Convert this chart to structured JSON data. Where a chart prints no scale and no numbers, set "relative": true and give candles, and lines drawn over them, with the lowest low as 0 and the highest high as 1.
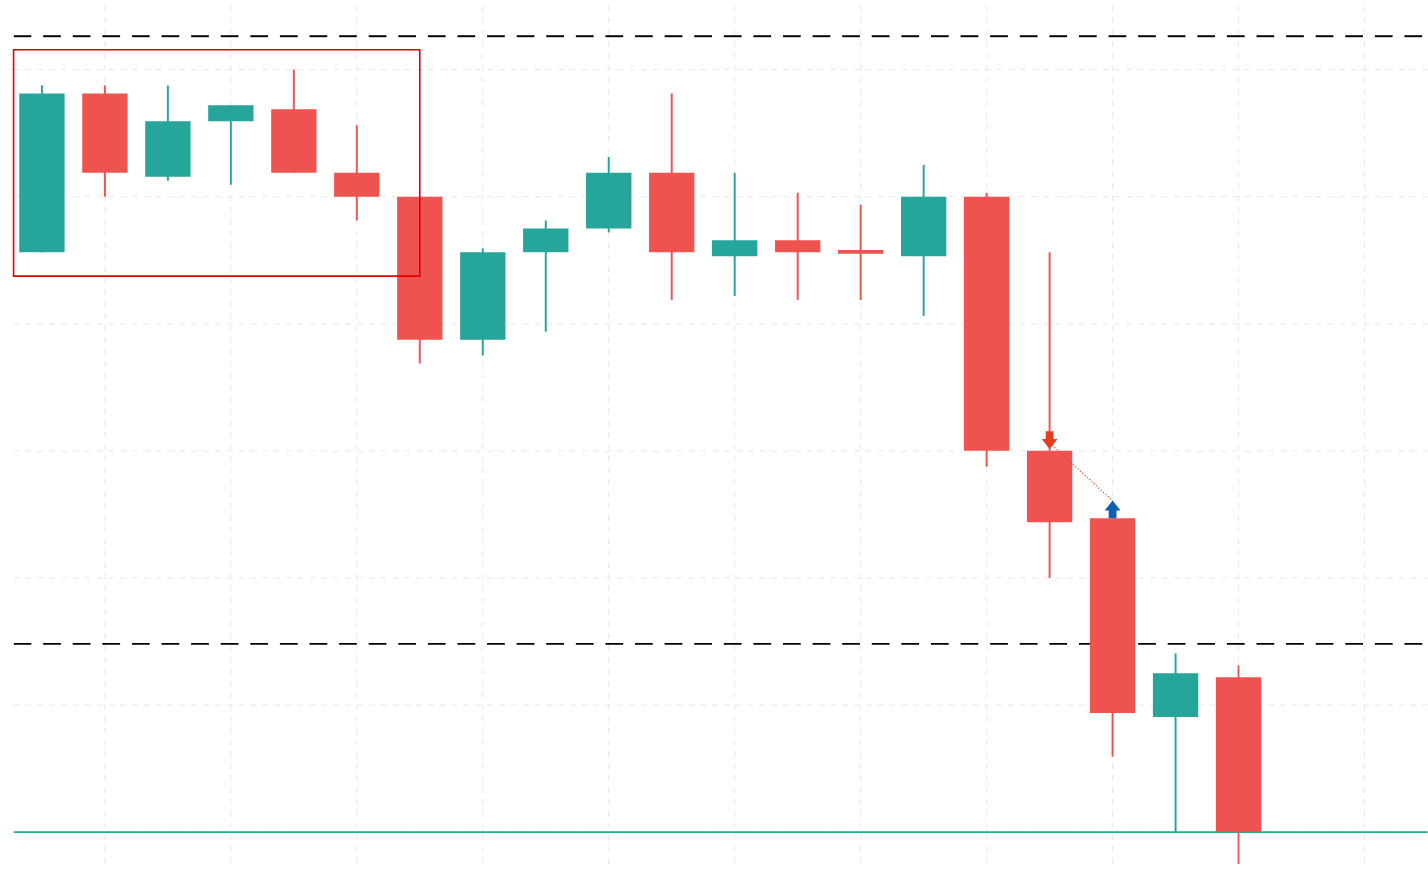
{
  "chart_data": {
    "type": "candlestick",
    "relative": true,
    "grid": true,
    "categories": [
      null,
      null,
      null,
      null,
      null,
      null,
      null,
      null,
      null,
      null,
      null,
      null,
      null,
      null,
      null,
      null,
      null,
      null,
      null,
      null
    ],
    "ohlc": [
      [
        0.77,
        0.98,
        0.77,
        0.97
      ],
      [
        0.97,
        0.98,
        0.84,
        0.87
      ],
      [
        0.865,
        0.98,
        0.86,
        0.935
      ],
      [
        0.935,
        0.955,
        0.855,
        0.955
      ],
      [
        0.95,
        1.0,
        0.87,
        0.87
      ],
      [
        0.87,
        0.93,
        0.81,
        0.84
      ],
      [
        0.84,
        0.84,
        0.63,
        0.66
      ],
      [
        0.66,
        0.775,
        0.64,
        0.77
      ],
      [
        0.77,
        0.81,
        0.67,
        0.8
      ],
      [
        0.8,
        0.89,
        0.795,
        0.87
      ],
      [
        0.87,
        0.97,
        0.71,
        0.77
      ],
      [
        0.765,
        0.87,
        0.715,
        0.785
      ],
      [
        0.785,
        0.845,
        0.71,
        0.77
      ],
      [
        0.773,
        0.83,
        0.71,
        0.768
      ],
      [
        0.765,
        0.88,
        0.69,
        0.84
      ],
      [
        0.84,
        0.845,
        0.5,
        0.52
      ],
      [
        0.52,
        0.77,
        0.36,
        0.43
      ],
      [
        0.435,
        0.435,
        0.135,
        0.19
      ],
      [
        0.185,
        0.265,
        0.04,
        0.24
      ],
      [
        0.235,
        0.25,
        0.0,
        0.04
      ]
    ],
    "colors": [
      "#26a69a",
      "#ef5350",
      "#26a69a",
      "#26a69a",
      "#ef5350",
      "#ef5350",
      "#ef5350",
      "#26a69a",
      "#26a69a",
      "#26a69a",
      "#ef5350",
      "#26a69a",
      "#ef5350",
      "#ef5350",
      "#26a69a",
      "#ef5350",
      "#ef5350",
      "#ef5350",
      "#26a69a",
      "#ef5350"
    ],
    "ref_lines": [
      {
        "axis": "y",
        "value": 1.042,
        "color": "#000000",
        "line_style": "dashed"
      },
      {
        "axis": "y",
        "value": 0.277,
        "color": "#000000",
        "line_style": "dashed"
      },
      {
        "axis": "y",
        "value": 0.04,
        "color": "#22ab94",
        "line_style": "solid"
      }
    ]
  }
}
